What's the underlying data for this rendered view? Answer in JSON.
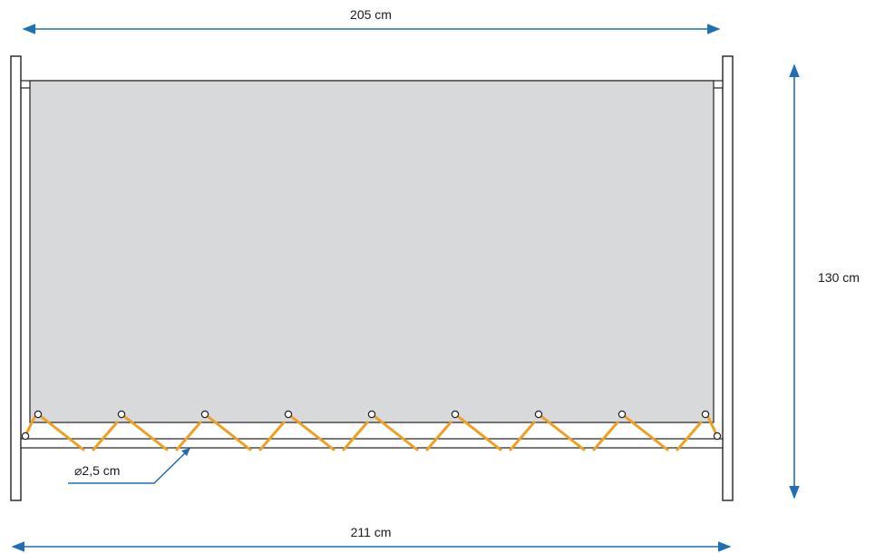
{
  "dimensions": {
    "top_width": "205 cm",
    "bottom_width": "211 cm",
    "height": "130 cm",
    "rod_diameter": "⌀2,5 cm"
  },
  "eyelet_count": 9,
  "colors": {
    "dimension_arrow": "#1f6fb2",
    "cord": "#f0a020",
    "panel": "#d8d9db",
    "frame_stroke": "#222222"
  },
  "icons": {
    "arrow": "dimension-arrow",
    "eyelet": "eyelet-ring"
  }
}
